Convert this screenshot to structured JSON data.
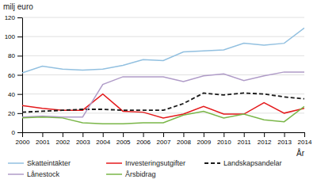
{
  "chart_data": {
    "type": "line",
    "ylabel": "milj euro",
    "xlabel": "År",
    "x": [
      2000,
      2001,
      2002,
      2003,
      2004,
      2005,
      2006,
      2007,
      2008,
      2009,
      2010,
      2011,
      2012,
      2013,
      2014
    ],
    "xlim": [
      2000,
      2014
    ],
    "xticks": [
      2000,
      2001,
      2002,
      2003,
      2004,
      2005,
      2006,
      2007,
      2008,
      2009,
      2010,
      2011,
      2012,
      2013,
      2014
    ],
    "ylim": [
      0,
      120
    ],
    "yticks": [
      0,
      20,
      40,
      60,
      80,
      100,
      120
    ],
    "grid": true,
    "legend": "bottom",
    "series": [
      {
        "name": "Skatteintäkter",
        "color": "#92c0e0",
        "values": [
          62,
          69,
          66,
          65,
          66,
          70,
          76,
          75,
          84,
          85,
          86,
          93,
          91,
          93,
          109
        ]
      },
      {
        "name": "Investeringsutgifter",
        "color": "#e41a1c",
        "values": [
          28,
          25,
          23,
          23,
          40,
          22,
          21,
          15,
          19,
          27,
          19,
          19,
          31,
          20,
          25
        ]
      },
      {
        "name": "Landskapsandelar",
        "color": "#1a1a1a",
        "line_style": "dashed",
        "values": [
          21,
          22,
          23,
          24,
          24,
          23,
          23,
          23,
          30,
          41,
          39,
          41,
          40,
          37,
          35
        ]
      },
      {
        "name": "Lånestock",
        "color": "#b09cc8",
        "values": [
          16,
          17,
          16,
          16,
          50,
          58,
          58,
          58,
          53,
          59,
          61,
          54,
          59,
          63,
          63
        ]
      },
      {
        "name": "Årsbidrag",
        "color": "#7ab648",
        "values": [
          15,
          16,
          15,
          10,
          9,
          9,
          10,
          10,
          18,
          22,
          15,
          19,
          13,
          11,
          27
        ]
      }
    ]
  }
}
